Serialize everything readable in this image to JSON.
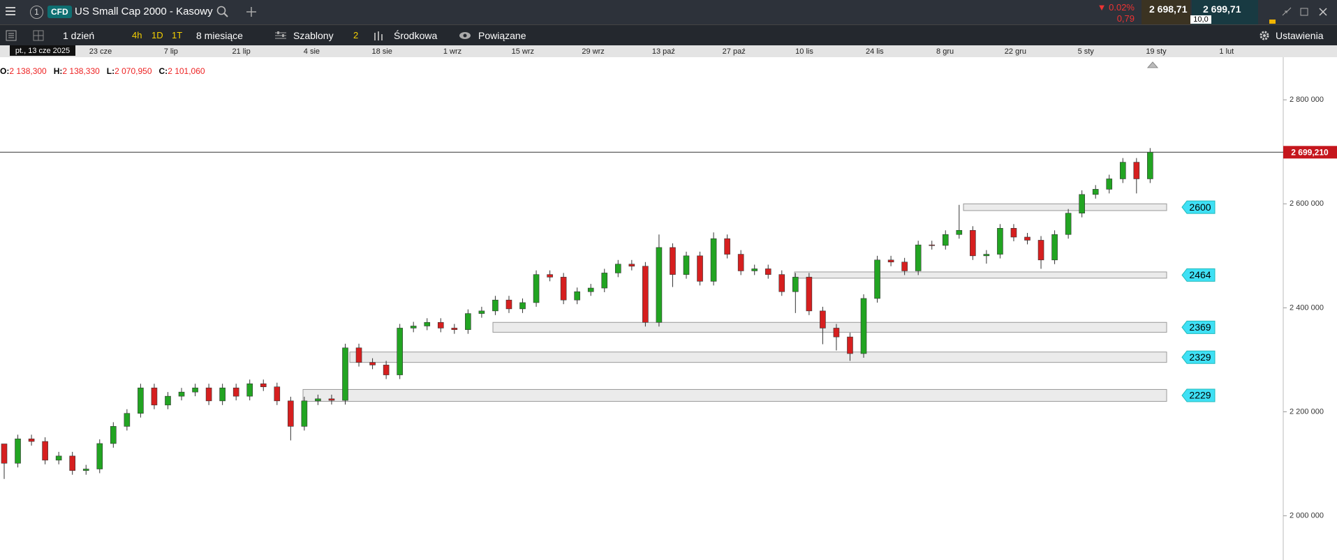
{
  "header": {
    "layout_number": "1",
    "badge": "CFD",
    "title": "US Small Cap 2000 - Kasowy",
    "change_pct": "▼ 0.02%",
    "change_abs": "0,79",
    "bid": "2 698,71",
    "ask": "2 699,71",
    "spread": "10,0"
  },
  "toolbar": {
    "period": "1 dzień",
    "intervals": [
      "4h",
      "1D",
      "1T"
    ],
    "range": "8 miesiące",
    "templates": "Szablony",
    "templates_count": "2",
    "mode": "Środkowa",
    "linked": "Powiązane",
    "settings": "Ustawienia"
  },
  "ohlc": [
    {
      "key": "O:",
      "text": "2 138,300"
    },
    {
      "key": "H:",
      "text": "2 138,330"
    },
    {
      "key": "L:",
      "text": "2 070,950"
    },
    {
      "key": "C:",
      "text": "2 101,060"
    }
  ],
  "chart_data": {
    "type": "candlestick",
    "cursor_date": "pt., 13 cze 2025",
    "x_labels": [
      "23 cze",
      "7 lip",
      "21 lip",
      "4 sie",
      "18 sie",
      "1 wrz",
      "15 wrz",
      "29 wrz",
      "13 paź",
      "27 paź",
      "10 lis",
      "24 lis",
      "8 gru",
      "22 gru",
      "5 sty",
      "19 sty",
      "1 lut"
    ],
    "open": [
      2138300,
      2101060,
      2148000,
      2143000,
      2107000,
      2115000,
      2087000,
      2090000,
      2139000,
      2172000,
      2197000,
      2246000,
      2213000,
      2230000,
      2238000,
      2246000,
      2221000,
      2246000,
      2230000,
      2254000,
      2248000,
      2221000,
      2172000,
      2221000,
      2225000,
      2222000,
      2323000,
      2295000,
      2290000,
      2271000,
      2361000,
      2365000,
      2372000,
      2361000,
      2358000,
      2389000,
      2394000,
      2415000,
      2398000,
      2410000,
      2464000,
      2459000,
      2415000,
      2431000,
      2438000,
      2467000,
      2484000,
      2480000,
      2372000,
      2516000,
      2464000,
      2500000,
      2451000,
      2533000,
      2503000,
      2471000,
      2475000,
      2464000,
      2431000,
      2459000,
      2394000,
      2361000,
      2344000,
      2312000,
      2418000,
      2492000,
      2488000,
      2471000,
      2521000,
      2520000,
      2541000,
      2549000,
      2500000,
      2503000,
      2553000,
      2536000,
      2530000,
      2492000,
      2541000,
      2582000,
      2618000,
      2628000,
      2648000,
      2680000,
      2648000
    ],
    "high": [
      2138330,
      2156000,
      2156000,
      2151000,
      2123000,
      2123000,
      2098000,
      2147000,
      2180000,
      2205000,
      2254000,
      2254000,
      2238000,
      2246000,
      2254000,
      2254000,
      2254000,
      2254000,
      2262000,
      2262000,
      2256000,
      2229000,
      2229000,
      2233000,
      2233000,
      2331000,
      2331000,
      2303000,
      2298000,
      2369000,
      2373000,
      2380000,
      2380000,
      2369000,
      2397000,
      2402000,
      2423000,
      2423000,
      2418000,
      2472000,
      2472000,
      2467000,
      2439000,
      2446000,
      2475000,
      2492000,
      2492000,
      2488000,
      2541000,
      2524000,
      2508000,
      2508000,
      2545000,
      2541000,
      2511000,
      2483000,
      2483000,
      2472000,
      2467000,
      2467000,
      2402000,
      2369000,
      2352000,
      2426000,
      2500000,
      2500000,
      2496000,
      2529000,
      2529000,
      2549000,
      2598000,
      2557000,
      2511000,
      2561000,
      2561000,
      2544000,
      2538000,
      2549000,
      2590000,
      2626000,
      2636000,
      2656000,
      2688000,
      2688000,
      2707210
    ],
    "low": [
      2070950,
      2093060,
      2135000,
      2099000,
      2099000,
      2079000,
      2079000,
      2082000,
      2131000,
      2164000,
      2189000,
      2205000,
      2205000,
      2222000,
      2230000,
      2213000,
      2213000,
      2222000,
      2222000,
      2240000,
      2213000,
      2145000,
      2164000,
      2213000,
      2214000,
      2214000,
      2287000,
      2282000,
      2263000,
      2263000,
      2353000,
      2357000,
      2353000,
      2350000,
      2350000,
      2381000,
      2386000,
      2390000,
      2390000,
      2402000,
      2451000,
      2407000,
      2407000,
      2423000,
      2430000,
      2459000,
      2472000,
      2364000,
      2364000,
      2440000,
      2456000,
      2443000,
      2443000,
      2495000,
      2463000,
      2463000,
      2456000,
      2423000,
      2390000,
      2386000,
      2330000,
      2318000,
      2298000,
      2304000,
      2410000,
      2480000,
      2463000,
      2463000,
      2512000,
      2512000,
      2533000,
      2492000,
      2485000,
      2495000,
      2528000,
      2522000,
      2475000,
      2484000,
      2533000,
      2574000,
      2610000,
      2620000,
      2640000,
      2620000,
      2640000
    ],
    "close": [
      2101060,
      2148000,
      2143000,
      2107000,
      2115000,
      2087000,
      2090000,
      2139000,
      2172000,
      2197000,
      2246000,
      2213000,
      2230000,
      2238000,
      2246000,
      2221000,
      2246000,
      2230000,
      2254000,
      2248000,
      2221000,
      2172000,
      2221000,
      2225000,
      2222000,
      2323000,
      2295000,
      2290000,
      2271000,
      2361000,
      2365000,
      2372000,
      2361000,
      2358000,
      2389000,
      2394000,
      2415000,
      2398000,
      2410000,
      2464000,
      2459000,
      2415000,
      2431000,
      2438000,
      2467000,
      2484000,
      2480000,
      2372000,
      2516000,
      2464000,
      2500000,
      2451000,
      2533000,
      2503000,
      2471000,
      2475000,
      2464000,
      2431000,
      2459000,
      2394000,
      2361000,
      2344000,
      2312000,
      2418000,
      2492000,
      2488000,
      2471000,
      2521000,
      2520000,
      2541000,
      2549000,
      2500000,
      2503000,
      2553000,
      2536000,
      2530000,
      2492000,
      2541000,
      2582000,
      2618000,
      2628000,
      2648000,
      2680000,
      2648000,
      2699210
    ],
    "up_color": "#22a422",
    "down_color": "#d61f1f",
    "ylim": [
      1915000,
      2882000
    ],
    "yticks": [
      {
        "value": 2000000,
        "label": "2 000 000"
      },
      {
        "value": 2200000,
        "label": "2 200 000"
      },
      {
        "value": 2400000,
        "label": "2 400 000"
      },
      {
        "value": 2600000,
        "label": "2 600 000"
      },
      {
        "value": 2800000,
        "label": "2 800 000"
      }
    ],
    "last_price": {
      "value": 2699210,
      "label": "2 699,210"
    },
    "zones": [
      {
        "label": "2600",
        "top": 2600000,
        "bottom": 2587000
      },
      {
        "label": "2464",
        "top": 2469000,
        "bottom": 2457000
      },
      {
        "label": "2369",
        "top": 2372000,
        "bottom": 2353000
      },
      {
        "label": "2329",
        "top": 2315000,
        "bottom": 2295000
      },
      {
        "label": "2229",
        "top": 2243000,
        "bottom": 2220000
      }
    ],
    "zone_color": "#ebebeb",
    "zone_label_color": "#3fe0f5"
  }
}
